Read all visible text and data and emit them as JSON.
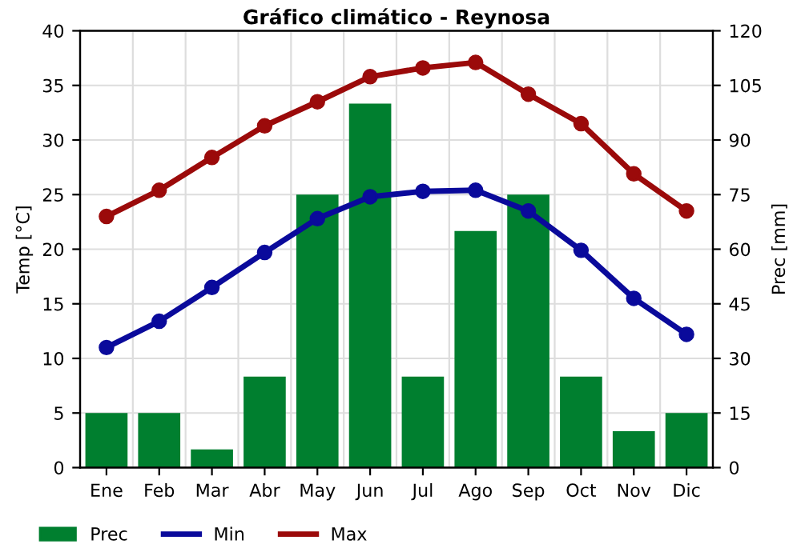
{
  "chart_data": {
    "type": "line",
    "title": "Gráfico climático - Reynosa",
    "ylabel": "Temp [°C]",
    "y2label": "Prec [mm]",
    "categories": [
      "Ene",
      "Feb",
      "Mar",
      "Abr",
      "May",
      "Jun",
      "Jul",
      "Ago",
      "Sep",
      "Oct",
      "Nov",
      "Dic"
    ],
    "series": [
      {
        "name": "Prec",
        "type": "bar",
        "axis": "y2",
        "color": "#007f2f",
        "values": [
          15,
          15,
          5,
          25,
          75,
          100,
          25,
          65,
          75,
          25,
          10,
          15
        ]
      },
      {
        "name": "Min",
        "color": "#0a0a9b",
        "marker": "circle",
        "values": [
          11.0,
          13.4,
          16.5,
          19.7,
          22.8,
          24.8,
          25.3,
          25.4,
          23.5,
          19.9,
          15.5,
          12.2
        ]
      },
      {
        "name": "Max",
        "color": "#9b0a0a",
        "marker": "circle",
        "values": [
          23.0,
          25.4,
          28.4,
          31.3,
          33.5,
          35.8,
          36.6,
          37.1,
          34.2,
          31.5,
          26.9,
          23.5
        ]
      }
    ],
    "ylim": [
      0,
      40
    ],
    "yticks": [
      0,
      5,
      10,
      15,
      20,
      25,
      30,
      35,
      40
    ],
    "y2lim": [
      0,
      120
    ],
    "y2ticks": [
      0,
      15,
      30,
      45,
      60,
      75,
      90,
      105,
      120
    ],
    "grid": true,
    "legend": "bottom left"
  }
}
